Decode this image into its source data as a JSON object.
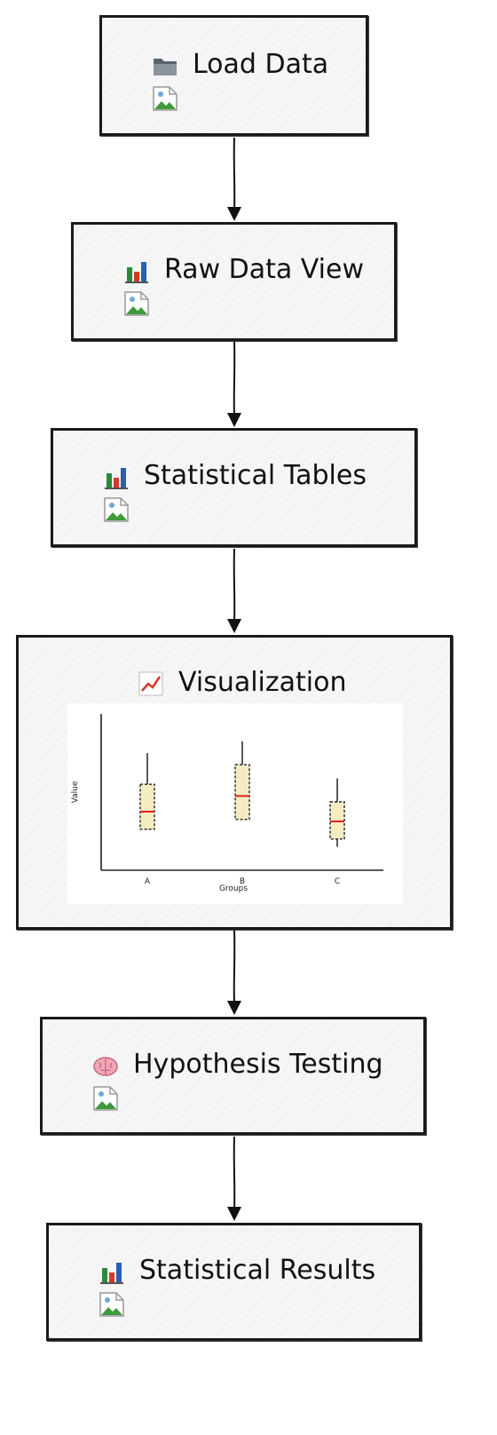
{
  "nodes": [
    {
      "id": "load-data",
      "label": "Load Data",
      "icon": "folder-icon"
    },
    {
      "id": "raw-data-view",
      "label": "Raw Data View",
      "icon": "bar-chart-icon"
    },
    {
      "id": "statistical-tables",
      "label": "Statistical Tables",
      "icon": "bar-chart-icon"
    },
    {
      "id": "visualization",
      "label": "Visualization",
      "icon": "line-chart-icon"
    },
    {
      "id": "hypothesis-testing",
      "label": "Hypothesis Testing",
      "icon": "brain-icon"
    },
    {
      "id": "statistical-results",
      "label": "Statistical Results",
      "icon": "bar-chart-icon"
    }
  ],
  "edges": [
    {
      "from": "load-data",
      "to": "raw-data-view"
    },
    {
      "from": "raw-data-view",
      "to": "statistical-tables"
    },
    {
      "from": "statistical-tables",
      "to": "visualization"
    },
    {
      "from": "visualization",
      "to": "hypothesis-testing"
    },
    {
      "from": "hypothesis-testing",
      "to": "statistical-results"
    }
  ],
  "chart_data": {
    "type": "box",
    "title": "",
    "xlabel": "Groups",
    "ylabel": "Value",
    "categories": [
      "A",
      "B",
      "C"
    ],
    "boxes": [
      {
        "category": "A",
        "whisker_low": 2.1,
        "q1": 2.1,
        "median": 3.0,
        "q3": 4.4,
        "whisker_high": 6.0
      },
      {
        "category": "B",
        "whisker_low": 2.6,
        "q1": 2.6,
        "median": 3.8,
        "q3": 5.4,
        "whisker_high": 6.6
      },
      {
        "category": "C",
        "whisker_low": 1.2,
        "q1": 1.6,
        "median": 2.5,
        "q3": 3.5,
        "whisker_high": 4.7
      }
    ],
    "ylim": [
      0,
      8
    ],
    "colors": {
      "box_fill": "#f6ecc2",
      "median": "#e02020",
      "box_stroke": "#222222"
    }
  }
}
